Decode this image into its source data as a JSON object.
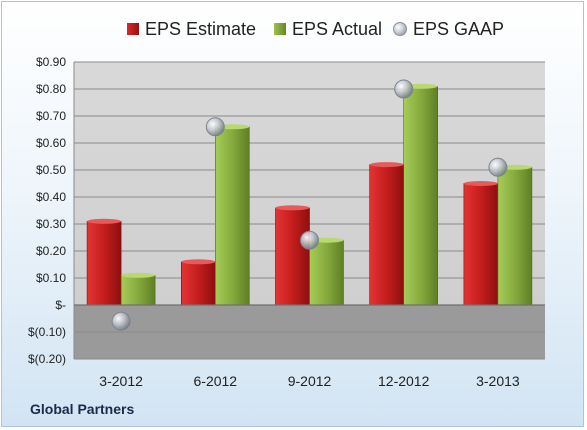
{
  "source_label": "Global Partners",
  "colors": {
    "estimate": "#c91f1f",
    "actual": "#84a93c",
    "gaap": "#b9bfc7",
    "plot_background": "#d3d3d3"
  },
  "chart_data": {
    "type": "bar",
    "title": "",
    "xlabel": "",
    "ylabel": "",
    "categories": [
      "3-2012",
      "6-2012",
      "9-2012",
      "12-2012",
      "3-2013"
    ],
    "series": [
      {
        "name": "EPS Estimate",
        "type": "bar",
        "values": [
          0.31,
          0.16,
          0.36,
          0.52,
          0.45
        ]
      },
      {
        "name": "EPS Actual",
        "type": "bar",
        "values": [
          0.11,
          0.66,
          0.24,
          0.81,
          0.51
        ]
      },
      {
        "name": "EPS GAAP",
        "type": "scatter",
        "values": [
          -0.06,
          0.66,
          0.24,
          0.8,
          0.51
        ]
      }
    ],
    "ylim": [
      -0.2,
      0.9
    ],
    "y_ticks": [
      {
        "value": 0.9,
        "label": "$0.90"
      },
      {
        "value": 0.8,
        "label": "$0.80"
      },
      {
        "value": 0.7,
        "label": "$0.70"
      },
      {
        "value": 0.6,
        "label": "$0.60"
      },
      {
        "value": 0.5,
        "label": "$0.50"
      },
      {
        "value": 0.4,
        "label": "$0.40"
      },
      {
        "value": 0.3,
        "label": "$0.30"
      },
      {
        "value": 0.2,
        "label": "$0.20"
      },
      {
        "value": 0.1,
        "label": "$0.10"
      },
      {
        "value": 0.0,
        "label": "$-"
      },
      {
        "value": -0.1,
        "label": "$(0.10)"
      },
      {
        "value": -0.2,
        "label": "$(0.20)"
      }
    ],
    "grid": true,
    "legend": "top"
  }
}
